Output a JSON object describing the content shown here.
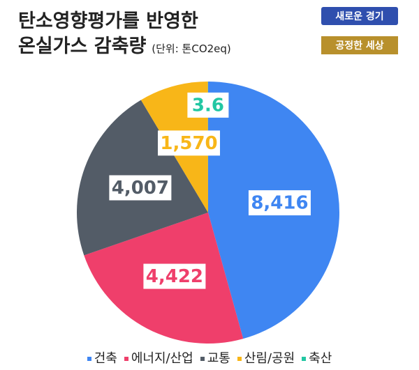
{
  "chart_data": {
    "type": "pie",
    "title": [
      "탄소영향평가를 반영한",
      "온실가스 감축량"
    ],
    "unit": "(단위: 톤CO2eq)",
    "logo": [
      "새로운 경기",
      "공정한 세상"
    ],
    "categories": [
      "건축",
      "에너지/산업",
      "교통",
      "산림/공원",
      "축산"
    ],
    "values": [
      8416,
      4422,
      4007,
      1570,
      3.6
    ],
    "value_labels": [
      "8,416",
      "4,422",
      "4,007",
      "1,570",
      "3.6"
    ],
    "colors": [
      "#3f86f2",
      "#ef3f6b",
      "#535c67",
      "#f8b618",
      "#22c7a3"
    ],
    "legend": "bottom"
  }
}
